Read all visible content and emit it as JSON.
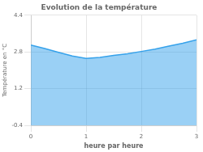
{
  "chart_data": {
    "type": "area",
    "title": "Evolution de la température",
    "xlabel": "heure par heure",
    "ylabel": "Température en °C",
    "x": [
      0,
      0.25,
      0.5,
      0.75,
      1.0,
      1.25,
      1.5,
      1.75,
      2.0,
      2.25,
      2.5,
      2.75,
      3.0
    ],
    "values": [
      3.1,
      2.95,
      2.78,
      2.62,
      2.52,
      2.56,
      2.65,
      2.72,
      2.82,
      2.92,
      3.05,
      3.18,
      3.33
    ],
    "xlim": [
      0,
      3
    ],
    "ylim": [
      -0.4,
      4.4
    ],
    "xticks": [
      0,
      1,
      2,
      3
    ],
    "yticks": [
      -0.4,
      1.2,
      2.8,
      4.4
    ],
    "grid": true
  }
}
